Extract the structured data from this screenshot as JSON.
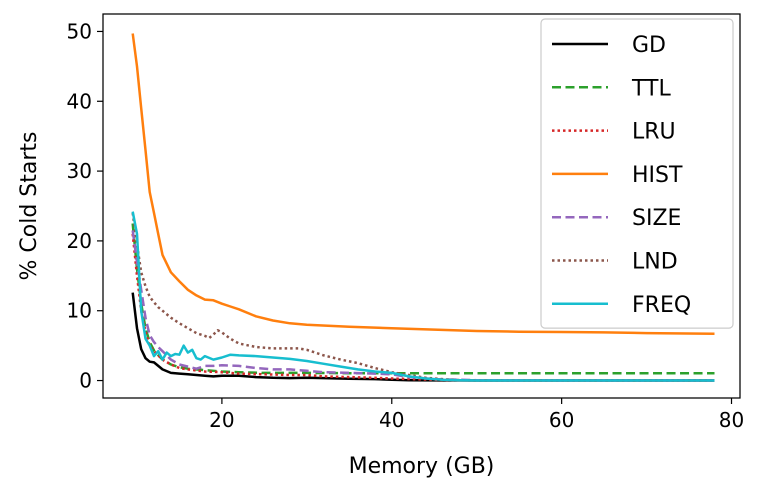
{
  "chart_data": {
    "type": "line",
    "xlabel": "Memory (GB)",
    "ylabel": "% Cold Starts",
    "xlim": [
      6,
      81
    ],
    "ylim": [
      -2.5,
      52.5
    ],
    "xticks": [
      20,
      40,
      60,
      80
    ],
    "yticks": [
      0,
      10,
      20,
      30,
      40,
      50
    ],
    "grid": false,
    "legend_position": "top-right",
    "series": [
      {
        "name": "GD",
        "color": "#000000",
        "dash": "solid",
        "x": [
          9.5,
          10,
          10.5,
          11,
          11.5,
          12,
          13,
          14,
          15,
          16,
          17,
          18,
          19,
          20,
          22,
          24,
          26,
          28,
          30,
          32,
          35,
          38,
          40,
          42,
          45,
          50,
          60,
          70,
          78
        ],
        "y": [
          12.6,
          7.5,
          4.5,
          3.2,
          2.7,
          2.6,
          1.6,
          1.1,
          1.0,
          0.9,
          0.8,
          0.7,
          0.6,
          0.7,
          0.7,
          0.5,
          0.4,
          0.35,
          0.4,
          0.35,
          0.25,
          0.2,
          0.1,
          0.05,
          0.02,
          0,
          0,
          0,
          0
        ]
      },
      {
        "name": "TTL",
        "color": "#2ca02c",
        "dash": "dashed",
        "x": [
          9.5,
          10,
          10.5,
          11,
          11.5,
          12,
          13,
          14,
          15,
          16,
          18,
          20,
          22,
          25,
          30,
          35,
          40,
          45,
          50,
          60,
          70,
          78
        ],
        "y": [
          22.5,
          16,
          11,
          7.5,
          5.5,
          4.3,
          3.0,
          2.3,
          1.9,
          1.7,
          1.5,
          1.3,
          1.2,
          1.1,
          1.1,
          1.05,
          1.05,
          1.05,
          1.05,
          1.05,
          1.05,
          1.05
        ]
      },
      {
        "name": "LRU",
        "color": "#d62728",
        "dash": "dotted",
        "x": [
          9.5,
          10,
          10.5,
          11,
          11.5,
          12,
          13,
          14,
          15,
          16,
          18,
          20,
          22,
          25,
          28,
          30,
          32,
          35,
          38,
          40,
          45,
          50,
          60,
          70,
          78
        ],
        "y": [
          21,
          15,
          10,
          7,
          5,
          4.2,
          3.0,
          2.3,
          1.8,
          1.6,
          1.3,
          1.2,
          1.0,
          0.9,
          0.8,
          0.8,
          0.6,
          0.5,
          0.4,
          0.3,
          0.1,
          0.02,
          0,
          0,
          0
        ]
      },
      {
        "name": "HIST",
        "color": "#ff7f0e",
        "dash": "solid",
        "x": [
          9.5,
          10,
          10.5,
          11,
          11.5,
          12,
          12.5,
          13,
          14,
          15,
          16,
          17,
          18,
          19,
          20,
          21,
          22,
          24,
          26,
          28,
          30,
          35,
          40,
          45,
          50,
          55,
          60,
          65,
          70,
          78
        ],
        "y": [
          49.7,
          45,
          39,
          33,
          27,
          24,
          21,
          18,
          15.5,
          14.2,
          13,
          12.2,
          11.6,
          11.5,
          11.0,
          10.6,
          10.2,
          9.2,
          8.6,
          8.2,
          8.0,
          7.7,
          7.5,
          7.3,
          7.1,
          7.0,
          6.95,
          6.9,
          6.8,
          6.7
        ]
      },
      {
        "name": "SIZE",
        "color": "#9467bd",
        "dash": "dashed",
        "x": [
          9.5,
          10,
          10.5,
          11,
          11.5,
          12,
          12.5,
          13,
          14,
          15,
          16,
          17,
          18,
          19,
          20,
          22,
          24,
          26,
          28,
          30,
          32,
          35,
          38,
          40,
          42,
          45,
          50,
          60,
          70,
          78
        ],
        "y": [
          21.5,
          17,
          13,
          9,
          6.5,
          5.5,
          4.8,
          4.2,
          3.0,
          2.3,
          2.0,
          1.7,
          2.1,
          2.1,
          2.2,
          2.1,
          1.8,
          1.6,
          1.6,
          1.4,
          1.2,
          1.1,
          1.0,
          0.9,
          0.5,
          0.2,
          0.05,
          0,
          0,
          0
        ]
      },
      {
        "name": "LND",
        "color": "#8c564b",
        "dash": "dotted",
        "x": [
          9.5,
          10,
          10.5,
          11,
          11.5,
          12,
          12.5,
          13,
          14,
          15,
          16,
          17,
          18,
          18.5,
          19,
          19.5,
          20,
          21,
          22,
          24,
          26,
          28,
          29,
          30,
          32,
          34,
          36,
          38,
          40,
          42,
          44,
          46,
          48,
          50,
          60,
          70,
          78
        ],
        "y": [
          24,
          19.5,
          15.5,
          13.5,
          12,
          11.2,
          10.5,
          10.0,
          9.0,
          8.2,
          7.5,
          6.8,
          6.4,
          6.1,
          6.6,
          7.2,
          6.9,
          6.0,
          5.3,
          4.8,
          4.6,
          4.6,
          4.6,
          4.4,
          3.6,
          3.0,
          2.5,
          1.8,
          1.2,
          0.8,
          0.4,
          0.2,
          0.05,
          0,
          0,
          0,
          0
        ]
      },
      {
        "name": "FREQ",
        "color": "#17becf",
        "dash": "solid",
        "x": [
          9.5,
          10,
          10.5,
          11,
          11.5,
          12,
          12.5,
          13,
          13.5,
          14,
          14.5,
          15,
          15.5,
          16,
          16.5,
          17,
          17.5,
          18,
          19,
          20,
          21,
          22,
          24,
          26,
          28,
          30,
          32,
          34,
          36,
          38,
          40,
          42,
          44,
          46,
          48,
          50,
          60,
          70,
          78
        ],
        "y": [
          24.2,
          21,
          10,
          6.0,
          5.0,
          3.5,
          4.2,
          3.0,
          4.0,
          3.5,
          3.8,
          3.7,
          5.0,
          4.0,
          4.4,
          3.2,
          3.0,
          3.5,
          3.0,
          3.3,
          3.7,
          3.6,
          3.5,
          3.3,
          3.1,
          2.8,
          2.4,
          2.0,
          1.6,
          1.3,
          1.1,
          0.6,
          0.3,
          0.1,
          0.05,
          0,
          0,
          0,
          0
        ]
      }
    ]
  }
}
